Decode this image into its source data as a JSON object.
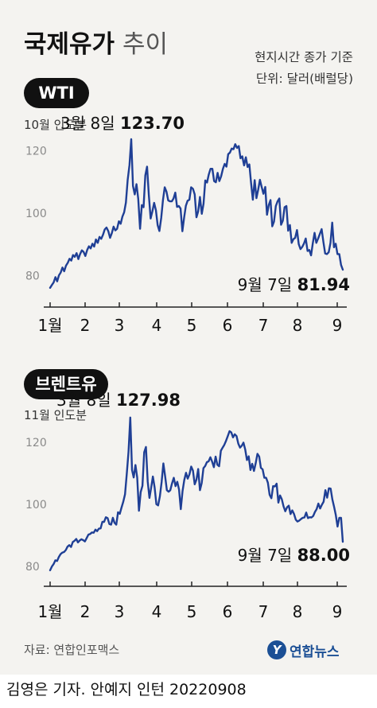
{
  "header": {
    "title_bold": "국제유가",
    "title_light": "추이",
    "note_line1": "현지시간 종가 기준",
    "note_line2": "단위: 달러(배럴당)"
  },
  "colors": {
    "line": "#1f3f95",
    "text": "#111111",
    "tick": "#8a8a8a",
    "background": "#f4f3f0",
    "logo": "#1b4f95"
  },
  "chart_data": [
    {
      "type": "line",
      "title": "WTI",
      "subtitle": "10월 인도분",
      "x_tick_labels": [
        "1월",
        "2",
        "3",
        "4",
        "5",
        "6",
        "7",
        "8",
        "9"
      ],
      "y_ticks": [
        80,
        100,
        120
      ],
      "ylim": [
        74,
        128
      ],
      "grid": false,
      "x_unit": "trading day index (1월 3일 = 0, 9월 7일 = 173)",
      "values": [
        76.1,
        77.0,
        77.8,
        79.5,
        78.2,
        80.1,
        81.0,
        82.6,
        81.4,
        83.2,
        84.1,
        85.4,
        84.8,
        86.6,
        86.0,
        87.2,
        85.3,
        86.9,
        88.1,
        87.6,
        86.3,
        88.2,
        89.4,
        88.7,
        90.2,
        89.3,
        91.6,
        90.5,
        92.4,
        91.8,
        93.1,
        94.8,
        95.4,
        94.2,
        92.1,
        93.6,
        95.7,
        94.5,
        95.0,
        97.4,
        96.6,
        98.9,
        100.3,
        103.4,
        110.6,
        115.4,
        123.7,
        108.7,
        106.0,
        109.3,
        104.6,
        95.0,
        102.6,
        101.9,
        112.1,
        114.9,
        105.9,
        98.3,
        100.6,
        103.3,
        101.0,
        96.2,
        94.3,
        98.5,
        104.2,
        108.3,
        106.9,
        104.1,
        103.8,
        103.8,
        104.7,
        106.6,
        102.0,
        102.3,
        101.5,
        94.2,
        98.6,
        102.4,
        104.0,
        104.3,
        108.3,
        107.8,
        106.0,
        98.7,
        100.6,
        105.2,
        99.8,
        103.0,
        110.5,
        109.8,
        112.4,
        114.2,
        114.2,
        110.3,
        109.9,
        112.9,
        110.3,
        111.8,
        114.2,
        115.8,
        114.9,
        118.9,
        119.4,
        120.7,
        120.5,
        122.1,
        120.9,
        121.5,
        117.6,
        118.2,
        115.3,
        117.9,
        114.8,
        115.6,
        109.6,
        104.3,
        110.6,
        104.8,
        107.5,
        110.7,
        108.4,
        106.2,
        108.4,
        99.5,
        102.6,
        104.2,
        95.8,
        97.3,
        102.3,
        103.8,
        104.7,
        96.3,
        97.6,
        101.9,
        102.3,
        94.4,
        96.2,
        90.5,
        91.7,
        92.1,
        94.6,
        90.1,
        88.5,
        89.2,
        90.3,
        91.9,
        87.9,
        88.2,
        86.5,
        90.4,
        93.7,
        90.5,
        91.9,
        93.4,
        94.9,
        90.8,
        87.1,
        86.9,
        87.5,
        90.5,
        97.0,
        89.1,
        90.2,
        86.9,
        86.9,
        83.4,
        81.9
      ],
      "annotations": [
        {
          "date": "3월 8일",
          "value_text": "123.70",
          "value": 123.7
        },
        {
          "date": "9월 7일",
          "value_text": "81.94",
          "value": 81.94
        }
      ]
    },
    {
      "type": "line",
      "title": "브렌트유",
      "subtitle": "11월 인도분",
      "x_tick_labels": [
        "1월",
        "2",
        "3",
        "4",
        "5",
        "6",
        "7",
        "8",
        "9"
      ],
      "y_ticks": [
        80,
        100,
        120
      ],
      "ylim": [
        78,
        131
      ],
      "grid": false,
      "x_unit": "trading day index (1월 3일 = 0, 9월 7일 = 173)",
      "values": [
        78.8,
        80.0,
        80.8,
        82.0,
        81.8,
        83.1,
        84.0,
        84.5,
        84.7,
        85.3,
        86.4,
        86.9,
        86.3,
        87.9,
        88.3,
        88.9,
        87.8,
        88.4,
        88.8,
        88.5,
        88.1,
        89.2,
        90.3,
        90.5,
        91.0,
        90.9,
        91.9,
        91.4,
        92.2,
        92.3,
        94.4,
        94.4,
        95.9,
        95.6,
        93.7,
        93.5,
        95.7,
        94.1,
        93.5,
        97.5,
        97.0,
        99.0,
        100.9,
        103.3,
        109.9,
        117.0,
        128.0,
        111.1,
        108.7,
        112.7,
        108.7,
        98.0,
        104.0,
        106.0,
        116.8,
        118.5,
        107.4,
        102.1,
        105.3,
        109.0,
        105.5,
        100.1,
        99.7,
        102.6,
        107.2,
        113.2,
        109.1,
        104.6,
        104.1,
        104.6,
        106.8,
        108.6,
        105.9,
        107.3,
        104.8,
        98.5,
        104.3,
        107.9,
        110.2,
        108.3,
        109.7,
        112.2,
        110.9,
        106.5,
        108.0,
        111.4,
        104.6,
        106.9,
        111.7,
        112.4,
        113.6,
        113.9,
        115.2,
        113.8,
        112.0,
        115.4,
        112.8,
        112.3,
        117.3,
        118.3,
        119.2,
        120.5,
        122.0,
        123.6,
        123.2,
        121.6,
        122.6,
        122.0,
        119.6,
        118.3,
        118.9,
        119.9,
        117.7,
        114.3,
        115.5,
        111.1,
        113.1,
        110.8,
        113.3,
        116.3,
        115.4,
        111.8,
        111.3,
        108.6,
        108.6,
        107.0,
        103.1,
        102.0,
        105.9,
        105.8,
        106.7,
        100.6,
        102.9,
        101.7,
        99.4,
        97.8,
        99.1,
        99.6,
        96.9,
        98.1,
        96.9,
        95.1,
        94.5,
        94.8,
        95.3,
        95.7,
        95.8,
        97.4,
        95.6,
        95.9,
        95.8,
        96.3,
        97.6,
        98.5,
        100.3,
        98.7,
        99.9,
        100.9,
        104.6,
        102.2,
        105.2,
        105.1,
        101.6,
        99.3,
        96.6,
        92.9,
        95.7,
        95.7,
        88.0
      ],
      "annotations": [
        {
          "date": "3월 8일",
          "value_text": "127.98",
          "value": 127.98
        },
        {
          "date": "9월 7일",
          "value_text": "88.00",
          "value": 88.0
        }
      ]
    }
  ],
  "footer": {
    "source": "자료: 연합인포맥스",
    "logo_mark": "Y",
    "logo_text": "연합뉴스",
    "credit": "김영은 기자. 안예지 인턴  20220908"
  }
}
